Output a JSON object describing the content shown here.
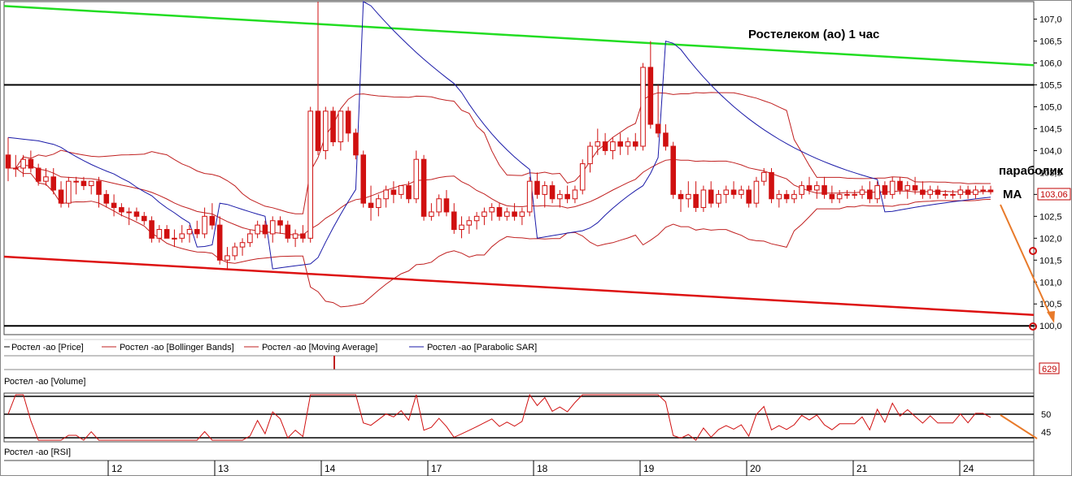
{
  "colors": {
    "candle": "#d01010",
    "bollinger": "#c02020",
    "ma": "#c02020",
    "sar": "#1a1aa8",
    "trend_upper": "#22dd22",
    "trend_lower": "#dd1111",
    "level": "#000000",
    "arrow": "#e87a2a",
    "grid": "#555555"
  },
  "annotations": {
    "title": "Ростелеком (ао)    1 час",
    "parabolic_label": "параболик",
    "ma_label": "МА",
    "current_price": "103,06",
    "volume_value": "629"
  },
  "legend": {
    "price": "Ростел -ао [Price]",
    "bollinger": "Ростел -ао [Bollinger Bands]",
    "ma": "Ростел -ао [Moving Average]",
    "sar": "Ростел -ао [Parabolic SAR]",
    "volume": "Ростел -ао [Volume]",
    "rsi": "Ростел -ао [RSI]"
  },
  "chart_data": {
    "type": "candlestick",
    "y_axis": {
      "min": 99.8,
      "max": 107.4,
      "ticks": [
        "100,0",
        "100,5",
        "101,0",
        "101,5",
        "102,0",
        "102,5",
        "103,0",
        "103,5",
        "104,0",
        "104,5",
        "105,0",
        "105,5",
        "106,0",
        "106,5",
        "107,0"
      ]
    },
    "x_axis": {
      "ticks": [
        "12",
        "13",
        "14",
        "17",
        "18",
        "19",
        "20",
        "21",
        "24"
      ]
    },
    "horizontal_levels": [
      105.5,
      100.0
    ],
    "trendlines": [
      {
        "name": "resistance",
        "color": "green",
        "from": [
          0,
          107.3
        ],
        "to": [
          1.0,
          105.95
        ]
      },
      {
        "name": "support",
        "color": "red",
        "from": [
          0,
          101.58
        ],
        "to": [
          1.0,
          100.25
        ]
      }
    ],
    "candles": [
      [
        103.9,
        104.3,
        103.3,
        103.6
      ],
      [
        103.6,
        103.9,
        103.4,
        103.6
      ],
      [
        103.6,
        103.9,
        103.4,
        103.8
      ],
      [
        103.8,
        104.0,
        103.5,
        103.6
      ],
      [
        103.6,
        103.7,
        103.2,
        103.3
      ],
      [
        103.3,
        103.6,
        103.2,
        103.4
      ],
      [
        103.4,
        103.6,
        103.0,
        103.1
      ],
      [
        103.1,
        103.3,
        102.7,
        102.8
      ],
      [
        102.8,
        103.4,
        102.7,
        103.3
      ],
      [
        103.3,
        103.4,
        103.0,
        103.3
      ],
      [
        103.3,
        103.4,
        103.1,
        103.2
      ],
      [
        103.2,
        103.3,
        103.0,
        103.3
      ],
      [
        103.3,
        103.4,
        102.7,
        103.0
      ],
      [
        103.0,
        103.1,
        102.7,
        102.8
      ],
      [
        102.8,
        103.0,
        102.5,
        102.7
      ],
      [
        102.7,
        102.8,
        102.5,
        102.6
      ],
      [
        102.6,
        102.7,
        102.3,
        102.6
      ],
      [
        102.6,
        102.7,
        102.4,
        102.5
      ],
      [
        102.5,
        102.6,
        102.3,
        102.4
      ],
      [
        102.4,
        102.5,
        101.9,
        102.0
      ],
      [
        102.0,
        102.3,
        101.9,
        102.2
      ],
      [
        102.2,
        102.3,
        102.0,
        102.0
      ],
      [
        102.0,
        102.2,
        101.8,
        102.0
      ],
      [
        102.0,
        102.3,
        101.9,
        102.1
      ],
      [
        102.1,
        102.3,
        101.9,
        102.2
      ],
      [
        102.2,
        102.4,
        102.0,
        102.1
      ],
      [
        102.1,
        102.7,
        102.0,
        102.5
      ],
      [
        102.5,
        102.8,
        102.2,
        102.3
      ],
      [
        102.3,
        102.5,
        101.4,
        101.5
      ],
      [
        101.5,
        101.8,
        101.3,
        101.6
      ],
      [
        101.6,
        101.9,
        101.5,
        101.8
      ],
      [
        101.8,
        102.0,
        101.6,
        101.9
      ],
      [
        101.9,
        102.2,
        101.8,
        102.1
      ],
      [
        102.1,
        102.4,
        102.0,
        102.3
      ],
      [
        102.3,
        102.4,
        102.0,
        102.1
      ],
      [
        102.1,
        102.5,
        101.9,
        102.4
      ],
      [
        102.4,
        102.5,
        102.1,
        102.3
      ],
      [
        102.3,
        102.4,
        101.9,
        102.0
      ],
      [
        102.0,
        102.2,
        101.8,
        102.1
      ],
      [
        102.1,
        102.3,
        101.9,
        102.0
      ],
      [
        102.0,
        105.0,
        101.9,
        104.9
      ],
      [
        104.9,
        107.4,
        103.9,
        104.0
      ],
      [
        104.0,
        105.0,
        103.8,
        104.9
      ],
      [
        104.9,
        105.0,
        104.1,
        104.2
      ],
      [
        104.2,
        104.9,
        104.0,
        104.9
      ],
      [
        104.9,
        105.0,
        104.2,
        104.4
      ],
      [
        104.4,
        104.5,
        103.8,
        103.9
      ],
      [
        103.9,
        104.0,
        102.7,
        102.8
      ],
      [
        102.8,
        103.2,
        102.4,
        102.7
      ],
      [
        102.7,
        103.0,
        102.5,
        102.9
      ],
      [
        102.9,
        103.2,
        102.7,
        103.1
      ],
      [
        103.1,
        103.3,
        102.8,
        103.0
      ],
      [
        103.0,
        103.2,
        102.9,
        103.2
      ],
      [
        103.2,
        103.3,
        102.8,
        102.9
      ],
      [
        102.9,
        104.0,
        102.8,
        103.8
      ],
      [
        103.8,
        103.9,
        102.4,
        102.5
      ],
      [
        102.5,
        102.8,
        102.4,
        102.6
      ],
      [
        102.6,
        103.0,
        102.5,
        102.9
      ],
      [
        102.9,
        103.1,
        102.5,
        102.6
      ],
      [
        102.6,
        102.8,
        102.1,
        102.2
      ],
      [
        102.2,
        102.5,
        102.0,
        102.3
      ],
      [
        102.3,
        102.5,
        102.1,
        102.4
      ],
      [
        102.4,
        102.6,
        102.2,
        102.5
      ],
      [
        102.5,
        102.7,
        102.3,
        102.6
      ],
      [
        102.6,
        102.8,
        102.4,
        102.7
      ],
      [
        102.7,
        102.8,
        102.4,
        102.5
      ],
      [
        102.5,
        102.7,
        102.4,
        102.6
      ],
      [
        102.6,
        102.8,
        102.4,
        102.5
      ],
      [
        102.5,
        102.7,
        102.3,
        102.6
      ],
      [
        102.6,
        103.4,
        102.5,
        103.3
      ],
      [
        103.3,
        103.5,
        102.9,
        103.0
      ],
      [
        103.0,
        103.3,
        102.7,
        103.2
      ],
      [
        103.2,
        103.3,
        102.8,
        102.9
      ],
      [
        102.9,
        103.1,
        102.7,
        103.0
      ],
      [
        103.0,
        103.2,
        102.8,
        102.9
      ],
      [
        102.9,
        103.2,
        102.8,
        103.1
      ],
      [
        103.1,
        103.8,
        103.0,
        103.7
      ],
      [
        103.7,
        104.2,
        103.5,
        104.1
      ],
      [
        104.1,
        104.5,
        103.9,
        104.2
      ],
      [
        104.2,
        104.4,
        103.9,
        104.0
      ],
      [
        104.0,
        104.3,
        103.8,
        104.2
      ],
      [
        104.2,
        104.4,
        103.9,
        104.1
      ],
      [
        104.1,
        104.3,
        103.9,
        104.2
      ],
      [
        104.2,
        104.4,
        104.0,
        104.1
      ],
      [
        104.1,
        106.0,
        104.0,
        105.9
      ],
      [
        105.9,
        106.5,
        104.5,
        104.6
      ],
      [
        104.6,
        105.5,
        104.3,
        104.4
      ],
      [
        104.4,
        104.6,
        104.0,
        104.1
      ],
      [
        104.1,
        104.2,
        102.9,
        103.0
      ],
      [
        103.0,
        103.1,
        102.6,
        102.9
      ],
      [
        102.9,
        103.3,
        102.7,
        103.0
      ],
      [
        103.0,
        103.3,
        102.6,
        102.7
      ],
      [
        102.7,
        103.2,
        102.6,
        103.1
      ],
      [
        103.1,
        103.3,
        102.7,
        102.8
      ],
      [
        102.8,
        103.1,
        102.7,
        103.0
      ],
      [
        103.0,
        103.2,
        102.8,
        103.1
      ],
      [
        103.1,
        103.3,
        102.9,
        103.0
      ],
      [
        103.0,
        103.2,
        102.9,
        103.1
      ],
      [
        103.1,
        103.2,
        102.7,
        102.8
      ],
      [
        102.8,
        103.4,
        102.7,
        103.3
      ],
      [
        103.3,
        103.6,
        103.2,
        103.5
      ],
      [
        103.5,
        103.6,
        102.8,
        102.9
      ],
      [
        102.9,
        103.1,
        102.7,
        103.0
      ],
      [
        103.0,
        103.1,
        102.8,
        102.9
      ],
      [
        102.9,
        103.1,
        102.8,
        103.0
      ],
      [
        103.0,
        103.3,
        102.9,
        103.2
      ],
      [
        103.2,
        103.4,
        103.0,
        103.1
      ],
      [
        103.1,
        103.3,
        102.9,
        103.2
      ],
      [
        103.2,
        103.4,
        102.9,
        103.0
      ],
      [
        103.0,
        103.2,
        102.8,
        102.9
      ],
      [
        102.9,
        103.1,
        102.8,
        103.0
      ],
      [
        103.0,
        103.1,
        102.9,
        103.0
      ],
      [
        103.0,
        103.1,
        102.9,
        103.0
      ],
      [
        103.0,
        103.2,
        102.9,
        103.1
      ],
      [
        103.1,
        103.3,
        102.8,
        102.9
      ],
      [
        102.9,
        103.3,
        102.8,
        103.2
      ],
      [
        103.2,
        103.3,
        102.9,
        103.0
      ],
      [
        103.0,
        103.4,
        102.9,
        103.3
      ],
      [
        103.3,
        103.4,
        103.0,
        103.1
      ],
      [
        103.1,
        103.3,
        102.9,
        103.2
      ],
      [
        103.2,
        103.4,
        103.0,
        103.1
      ],
      [
        103.1,
        103.3,
        102.9,
        103.0
      ],
      [
        103.0,
        103.2,
        102.9,
        103.1
      ],
      [
        103.1,
        103.2,
        102.9,
        103.0
      ],
      [
        103.0,
        103.1,
        102.9,
        103.0
      ],
      [
        103.0,
        103.1,
        102.9,
        103.0
      ],
      [
        103.0,
        103.2,
        102.9,
        103.1
      ],
      [
        103.1,
        103.2,
        102.9,
        103.0
      ],
      [
        103.0,
        103.2,
        102.9,
        103.1
      ],
      [
        103.1,
        103.2,
        103.0,
        103.1
      ],
      [
        103.1,
        103.2,
        103.0,
        103.06
      ]
    ],
    "rsi": {
      "levels": [
        50,
        45
      ],
      "tick_labels": [
        "50",
        "45"
      ]
    }
  }
}
